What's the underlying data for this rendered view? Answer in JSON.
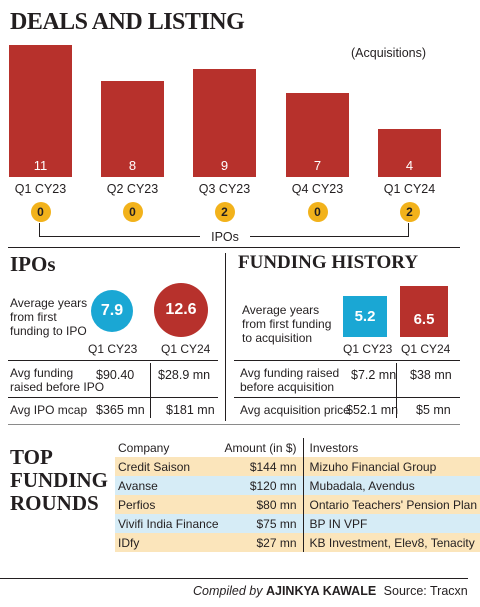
{
  "title": "DEALS AND LISTING",
  "chart_note": "(Acquisitions)",
  "chart_data": [
    {
      "type": "bar",
      "categories": [
        "Q1 CY23",
        "Q2 CY23",
        "Q3 CY23",
        "Q4 CY23",
        "Q1 CY24"
      ],
      "series": [
        {
          "name": "Acquisitions",
          "values": [
            11,
            8,
            9,
            7,
            4
          ]
        },
        {
          "name": "IPOs",
          "values": [
            0,
            0,
            2,
            0,
            2
          ]
        }
      ],
      "ylim": [
        0,
        11
      ]
    }
  ],
  "ipos_label": "IPOs",
  "colors": {
    "bar": "#b7312c",
    "ipo_dot": "#f2b21b",
    "teal": "#1aa7d4",
    "row_highlight": "#fbe5bb",
    "row_blue": "#d6ecf6"
  },
  "ipos": {
    "heading": "IPOs",
    "avg_years_label": [
      "Average years",
      "from first",
      "funding to IPO"
    ],
    "q1cy23_value": "7.9",
    "q1cy24_value": "12.6",
    "q1cy23_label": "Q1 CY23",
    "q1cy24_label": "Q1 CY24",
    "rows": [
      {
        "label": [
          "Avg funding",
          "raised before IPO"
        ],
        "a": "$90.40",
        "b": "$28.9 mn"
      },
      {
        "label": [
          "Avg IPO mcap"
        ],
        "a": "$365 mn",
        "b": "$181 mn"
      }
    ]
  },
  "funding_history": {
    "heading": "FUNDING HISTORY",
    "avg_years_label": [
      "Average years",
      "from first funding",
      "to acquisition"
    ],
    "q1cy23_value": "5.2",
    "q1cy24_value": "6.5",
    "q1cy23_label": "Q1 CY23",
    "q1cy24_label": "Q1 CY24",
    "rows": [
      {
        "label": [
          "Avg funding raised",
          "before acquisition"
        ],
        "a": "$7.2 mn",
        "b": "$38 mn"
      },
      {
        "label": [
          "Avg acquisition price"
        ],
        "a": "$52.1 mn",
        "b": "$5 mn"
      }
    ]
  },
  "top_funding": {
    "heading": [
      "TOP",
      "FUNDING",
      "ROUNDS"
    ],
    "headers": {
      "company": "Company",
      "amount": "Amount (in $)",
      "investors": "Investors"
    },
    "rows": [
      {
        "company": "Credit Saison",
        "amount": "$144 mn",
        "investors": "Mizuho Financial Group"
      },
      {
        "company": "Avanse",
        "amount": "$120 mn",
        "investors": "Mubadala, Avendus"
      },
      {
        "company": "Perfios",
        "amount": "$80 mn",
        "investors": "Ontario Teachers' Pension Plan"
      },
      {
        "company": "Vivifi India Finance",
        "amount": "$75 mn",
        "investors": "BP IN VPF"
      },
      {
        "company": "IDfy",
        "amount": "$27 mn",
        "investors": "KB Investment, Elev8, Tenacity"
      }
    ]
  },
  "footer": {
    "compiled_by": "Compiled by",
    "author": "AJINKYA KAWALE",
    "source": "Source: Tracxn"
  }
}
